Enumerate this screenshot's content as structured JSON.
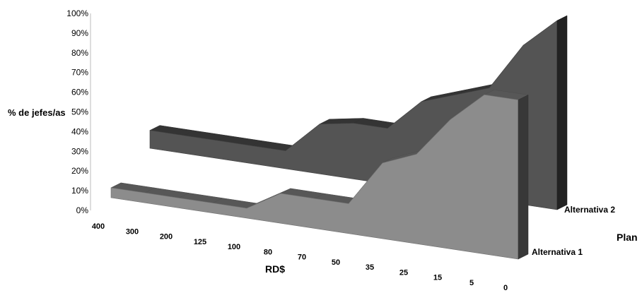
{
  "chart_data": {
    "type": "area",
    "style": "3d-area",
    "categories": [
      "400",
      "300",
      "200",
      "125",
      "100",
      "80",
      "70",
      "50",
      "35",
      "25",
      "15",
      "5",
      "0"
    ],
    "series": [
      {
        "name": "Alternativa 1",
        "values": [
          5,
          5,
          5,
          5,
          5,
          15,
          15,
          15,
          38,
          45,
          65,
          80,
          80
        ],
        "color": "#8c8c8c"
      },
      {
        "name": "Alternativa 2",
        "values": [
          9,
          9,
          9,
          9,
          9,
          25,
          28,
          28,
          44,
          50,
          56,
          80,
          95
        ],
        "color": "#545454"
      }
    ],
    "ylabel": "% de jefes/as",
    "xlabel": "RD$",
    "zlabel": "Plan",
    "yticks": [
      "0%",
      "10%",
      "20%",
      "30%",
      "40%",
      "50%",
      "60%",
      "70%",
      "80%",
      "90%",
      "100%"
    ],
    "ylim": [
      0,
      100
    ],
    "grid": false,
    "legend": "none"
  }
}
